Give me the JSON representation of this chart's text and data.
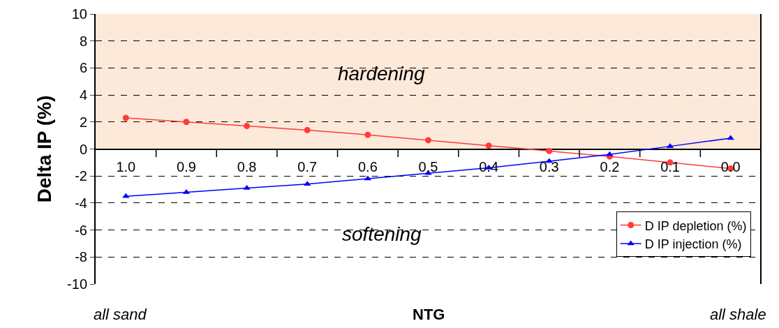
{
  "chart_data": {
    "type": "line",
    "xlabel": "NTG",
    "ylabel": "Delta IP (%)",
    "categories": [
      "1.0",
      "0.9",
      "0.8",
      "0.7",
      "0.6",
      "0.5",
      "0.4",
      "0.3",
      "0.2",
      "0.1",
      "0.0"
    ],
    "series": [
      {
        "name": "D IP depletion (%)",
        "color": "#ff3b3b",
        "marker": "circle",
        "values": [
          2.3,
          2.0,
          1.7,
          1.4,
          1.05,
          0.65,
          0.25,
          -0.15,
          -0.55,
          -1.0,
          -1.45
        ]
      },
      {
        "name": "D IP injection (%)",
        "color": "#0000ff",
        "marker": "triangle",
        "values": [
          -3.5,
          -3.2,
          -2.9,
          -2.6,
          -2.2,
          -1.8,
          -1.4,
          -0.9,
          -0.4,
          0.2,
          0.8
        ]
      }
    ],
    "ylim": [
      -10,
      10
    ],
    "yticks": [
      -10,
      -8,
      -6,
      -4,
      -2,
      0,
      2,
      4,
      6,
      8,
      10
    ],
    "grid": "y",
    "legend": "bottom right",
    "line_style": "solid",
    "bands": [
      {
        "axis": "y",
        "from": 0,
        "to": 10,
        "color": "#fde9d9"
      }
    ],
    "annotations": [
      "hardening",
      "softening",
      "all sand",
      "all shale"
    ]
  }
}
